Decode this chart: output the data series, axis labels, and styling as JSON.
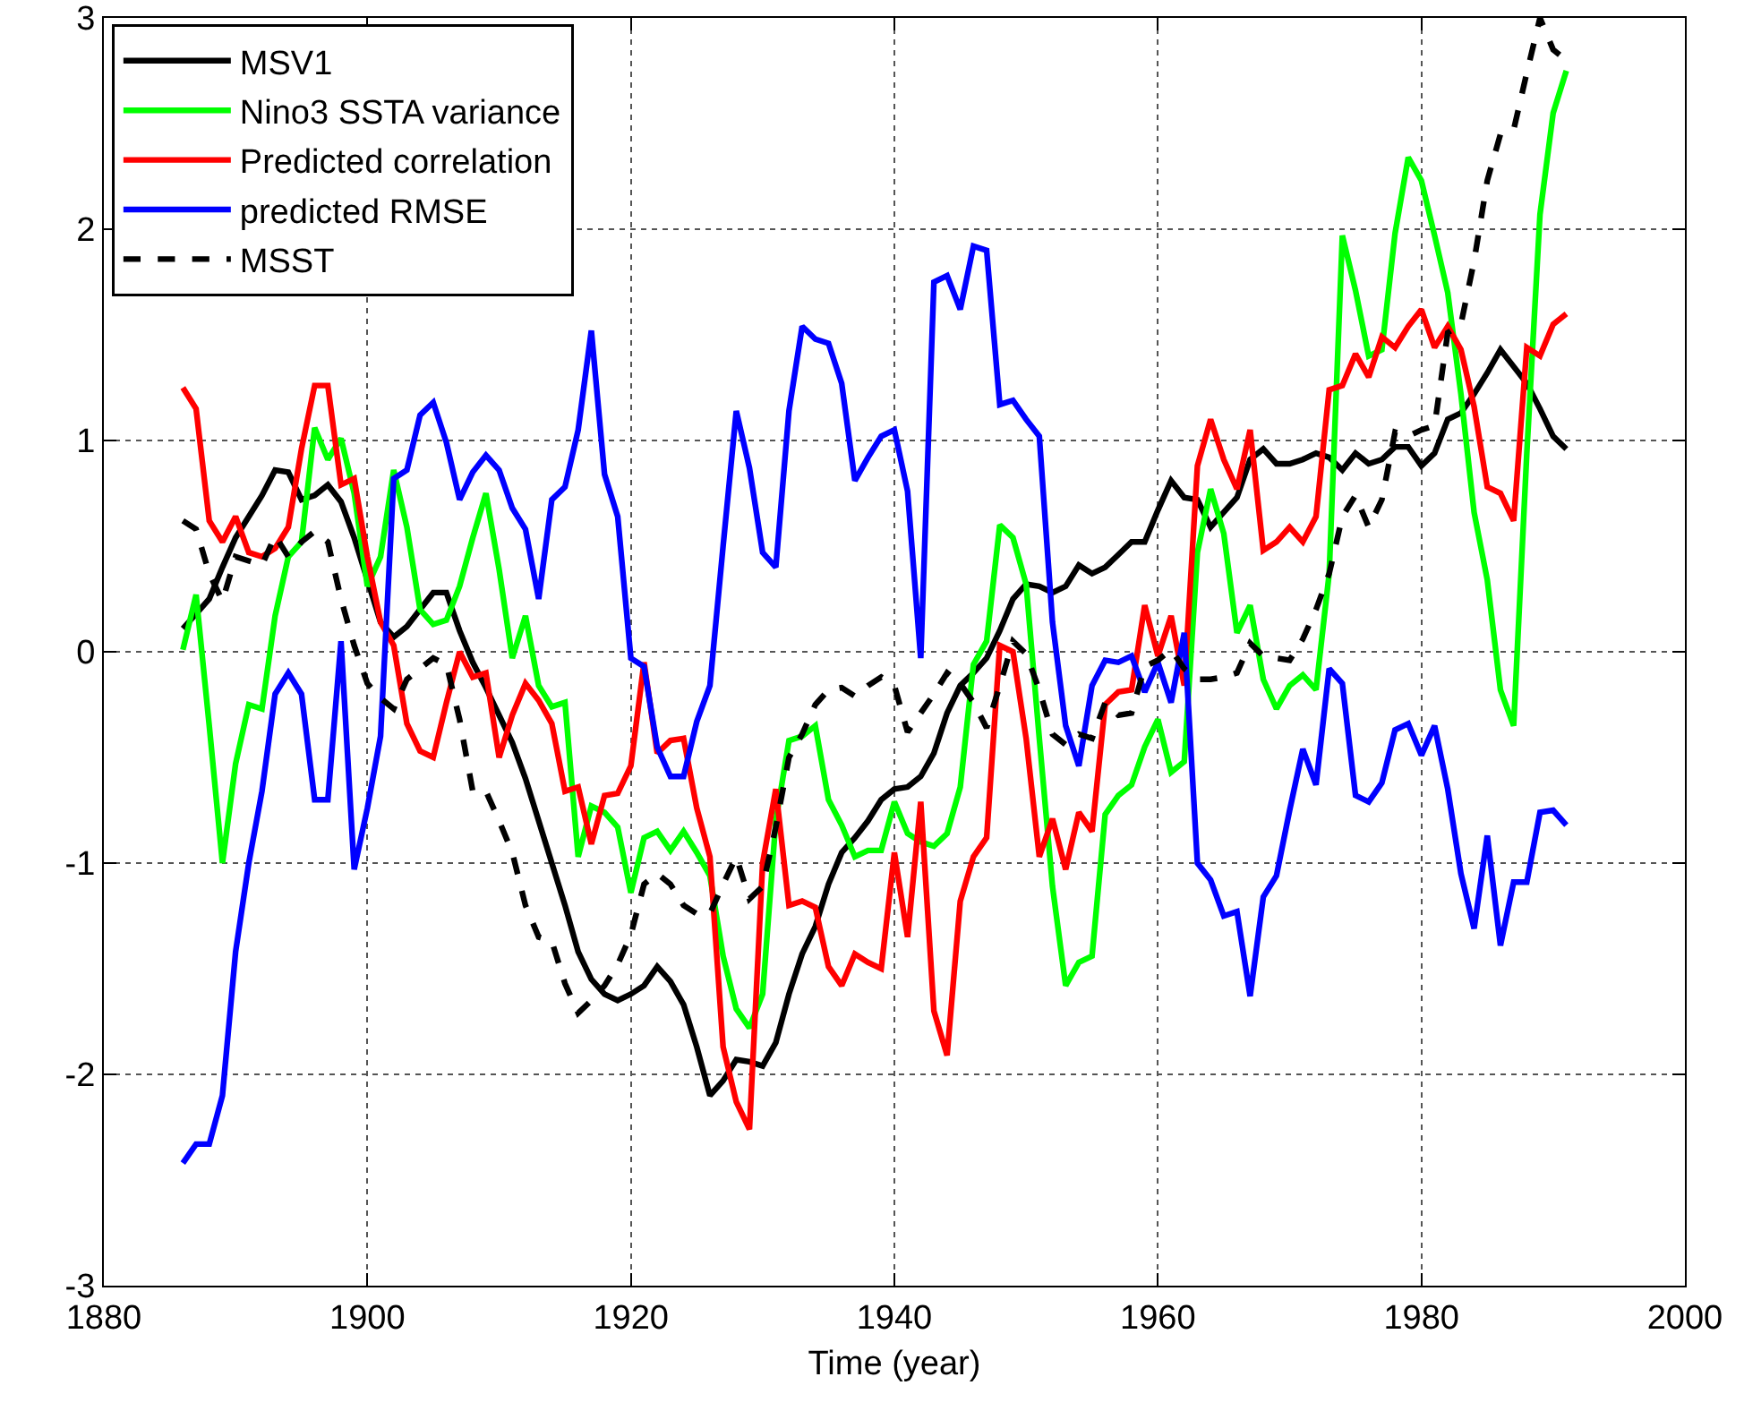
{
  "chart_data": {
    "type": "line",
    "xlabel": "Time (year)",
    "x": [
      1886,
      1887,
      1888,
      1889,
      1890,
      1891,
      1892,
      1893,
      1894,
      1895,
      1896,
      1897,
      1898,
      1899,
      1900,
      1901,
      1902,
      1903,
      1904,
      1905,
      1906,
      1907,
      1908,
      1909,
      1910,
      1911,
      1912,
      1913,
      1914,
      1915,
      1916,
      1917,
      1918,
      1919,
      1920,
      1921,
      1922,
      1923,
      1924,
      1925,
      1926,
      1927,
      1928,
      1929,
      1930,
      1931,
      1932,
      1933,
      1934,
      1935,
      1936,
      1937,
      1938,
      1939,
      1940,
      1941,
      1942,
      1943,
      1944,
      1945,
      1946,
      1947,
      1948,
      1949,
      1950,
      1951,
      1952,
      1953,
      1954,
      1955,
      1956,
      1957,
      1958,
      1959,
      1960,
      1961,
      1962,
      1963,
      1964,
      1965,
      1966,
      1967,
      1968,
      1969,
      1970,
      1971,
      1972,
      1973,
      1974,
      1975,
      1976,
      1977,
      1978,
      1979,
      1980,
      1981,
      1982,
      1983,
      1984,
      1985,
      1986,
      1987,
      1988,
      1989,
      1990,
      1991
    ],
    "xlim": [
      1880,
      2000
    ],
    "xticks": [
      1880,
      1900,
      1920,
      1940,
      1960,
      1980,
      2000
    ],
    "ylim": [
      -3,
      3
    ],
    "yticks": [
      -3,
      -2,
      -1,
      0,
      1,
      2,
      3
    ],
    "grid": true,
    "legend": "top left",
    "series": [
      {
        "name": "MSV1",
        "color": "#000000",
        "line_style": "solid",
        "values": [
          0.11,
          0.18,
          0.25,
          0.4,
          0.54,
          0.64,
          0.74,
          0.86,
          0.85,
          0.72,
          0.74,
          0.79,
          0.71,
          0.54,
          0.34,
          0.14,
          0.07,
          0.12,
          0.2,
          0.28,
          0.28,
          0.1,
          -0.05,
          -0.17,
          -0.3,
          -0.43,
          -0.6,
          -0.8,
          -1.0,
          -1.2,
          -1.42,
          -1.55,
          -1.62,
          -1.65,
          -1.62,
          -1.58,
          -1.49,
          -1.56,
          -1.67,
          -1.87,
          -2.1,
          -2.03,
          -1.93,
          -1.94,
          -1.96,
          -1.85,
          -1.62,
          -1.43,
          -1.3,
          -1.1,
          -0.95,
          -0.88,
          -0.8,
          -0.7,
          -0.65,
          -0.64,
          -0.59,
          -0.48,
          -0.29,
          -0.16,
          -0.1,
          -0.03,
          0.1,
          0.25,
          0.32,
          0.31,
          0.28,
          0.31,
          0.41,
          0.37,
          0.4,
          0.46,
          0.52,
          0.52,
          0.67,
          0.81,
          0.73,
          0.72,
          0.59,
          0.66,
          0.73,
          0.91,
          0.96,
          0.89,
          0.89,
          0.91,
          0.94,
          0.92,
          0.86,
          0.94,
          0.89,
          0.91,
          0.97,
          0.97,
          0.88,
          0.94,
          1.1,
          1.13,
          1.22,
          1.32,
          1.43,
          1.35,
          1.27,
          1.15,
          1.02,
          0.96
        ]
      },
      {
        "name": "Nino3 SSTA variance",
        "color": "#00ff00",
        "line_style": "solid",
        "values": [
          0.01,
          0.27,
          -0.35,
          -1.0,
          -0.53,
          -0.25,
          -0.27,
          0.17,
          0.45,
          0.52,
          1.06,
          0.91,
          1.01,
          0.75,
          0.31,
          0.45,
          0.86,
          0.59,
          0.2,
          0.13,
          0.15,
          0.31,
          0.54,
          0.75,
          0.39,
          -0.03,
          0.17,
          -0.16,
          -0.26,
          -0.24,
          -0.97,
          -0.73,
          -0.76,
          -0.83,
          -1.14,
          -0.88,
          -0.85,
          -0.94,
          -0.85,
          -0.95,
          -1.06,
          -1.44,
          -1.69,
          -1.78,
          -1.62,
          -0.8,
          -0.42,
          -0.4,
          -0.35,
          -0.7,
          -0.82,
          -0.97,
          -0.94,
          -0.94,
          -0.71,
          -0.86,
          -0.9,
          -0.92,
          -0.86,
          -0.64,
          -0.06,
          0.05,
          0.6,
          0.54,
          0.32,
          -0.41,
          -1.11,
          -1.58,
          -1.47,
          -1.44,
          -0.77,
          -0.68,
          -0.63,
          -0.45,
          -0.32,
          -0.57,
          -0.52,
          0.47,
          0.77,
          0.56,
          0.09,
          0.22,
          -0.13,
          -0.27,
          -0.16,
          -0.11,
          -0.18,
          0.37,
          1.97,
          1.71,
          1.4,
          1.43,
          1.98,
          2.34,
          2.23,
          1.97,
          1.7,
          1.22,
          0.66,
          0.34,
          -0.18,
          -0.35,
          0.94,
          2.07,
          2.55,
          2.75
        ]
      },
      {
        "name": "Predicted correlation",
        "color": "#ff0000",
        "line_style": "solid",
        "values": [
          1.25,
          1.15,
          0.62,
          0.52,
          0.64,
          0.47,
          0.45,
          0.49,
          0.59,
          0.96,
          1.26,
          1.26,
          0.79,
          0.82,
          0.45,
          0.14,
          0.03,
          -0.34,
          -0.47,
          -0.5,
          -0.24,
          0.0,
          -0.12,
          -0.1,
          -0.5,
          -0.3,
          -0.15,
          -0.23,
          -0.34,
          -0.66,
          -0.64,
          -0.91,
          -0.68,
          -0.67,
          -0.54,
          -0.05,
          -0.48,
          -0.42,
          -0.41,
          -0.74,
          -0.97,
          -1.87,
          -2.13,
          -2.26,
          -1.0,
          -0.65,
          -1.2,
          -1.18,
          -1.21,
          -1.49,
          -1.58,
          -1.43,
          -1.47,
          -1.5,
          -0.95,
          -1.35,
          -0.71,
          -1.7,
          -1.91,
          -1.18,
          -0.97,
          -0.88,
          0.03,
          0.0,
          -0.41,
          -0.97,
          -0.79,
          -1.03,
          -0.76,
          -0.85,
          -0.25,
          -0.19,
          -0.18,
          0.22,
          -0.02,
          0.17,
          -0.16,
          0.88,
          1.1,
          0.91,
          0.77,
          1.05,
          0.48,
          0.52,
          0.59,
          0.52,
          0.64,
          1.24,
          1.26,
          1.41,
          1.3,
          1.49,
          1.44,
          1.54,
          1.62,
          1.44,
          1.54,
          1.43,
          1.16,
          0.78,
          0.75,
          0.62,
          1.44,
          1.4,
          1.55,
          1.6
        ]
      },
      {
        "name": "predicted RMSE",
        "color": "#0000ff",
        "line_style": "solid",
        "values": [
          -2.42,
          -2.33,
          -2.33,
          -2.1,
          -1.42,
          -1.0,
          -0.66,
          -0.2,
          -0.1,
          -0.2,
          -0.7,
          -0.7,
          0.05,
          -1.03,
          -0.74,
          -0.4,
          0.82,
          0.86,
          1.12,
          1.18,
          0.99,
          0.72,
          0.85,
          0.93,
          0.86,
          0.68,
          0.58,
          0.25,
          0.72,
          0.78,
          1.05,
          1.52,
          0.84,
          0.64,
          -0.03,
          -0.07,
          -0.45,
          -0.59,
          -0.59,
          -0.33,
          -0.16,
          0.5,
          1.14,
          0.87,
          0.47,
          0.4,
          1.14,
          1.54,
          1.48,
          1.46,
          1.27,
          0.81,
          0.92,
          1.02,
          1.05,
          0.76,
          -0.03,
          1.75,
          1.78,
          1.62,
          1.92,
          1.9,
          1.17,
          1.19,
          1.1,
          1.02,
          0.14,
          -0.35,
          -0.54,
          -0.16,
          -0.04,
          -0.05,
          -0.02,
          -0.19,
          -0.05,
          -0.24,
          0.09,
          -1.0,
          -1.08,
          -1.25,
          -1.23,
          -1.63,
          -1.16,
          -1.06,
          -0.75,
          -0.46,
          -0.63,
          -0.08,
          -0.15,
          -0.68,
          -0.71,
          -0.62,
          -0.37,
          -0.34,
          -0.49,
          -0.35,
          -0.65,
          -1.05,
          -1.31,
          -0.87,
          -1.39,
          -1.09,
          -1.09,
          -0.76,
          -0.75,
          -0.82
        ]
      },
      {
        "name": "MSST",
        "color": "#000000",
        "line_style": "dashed",
        "values": [
          0.62,
          0.58,
          0.37,
          0.24,
          0.45,
          0.43,
          0.41,
          0.55,
          0.45,
          0.52,
          0.57,
          0.52,
          0.25,
          0.03,
          -0.15,
          -0.22,
          -0.27,
          -0.13,
          -0.08,
          -0.03,
          -0.06,
          -0.32,
          -0.66,
          -0.66,
          -0.8,
          -0.95,
          -1.2,
          -1.35,
          -1.37,
          -1.57,
          -1.71,
          -1.65,
          -1.58,
          -1.48,
          -1.34,
          -1.1,
          -1.05,
          -1.1,
          -1.2,
          -1.24,
          -1.24,
          -1.1,
          -0.97,
          -1.17,
          -1.11,
          -0.83,
          -0.5,
          -0.39,
          -0.25,
          -0.18,
          -0.17,
          -0.21,
          -0.16,
          -0.12,
          -0.16,
          -0.38,
          -0.29,
          -0.2,
          -0.1,
          -0.15,
          -0.24,
          -0.36,
          -0.16,
          0.05,
          -0.01,
          -0.18,
          -0.39,
          -0.44,
          -0.39,
          -0.41,
          -0.24,
          -0.3,
          -0.29,
          -0.07,
          -0.04,
          0.01,
          -0.08,
          -0.13,
          -0.13,
          -0.12,
          -0.1,
          0.04,
          -0.02,
          -0.03,
          -0.04,
          0.06,
          0.2,
          0.37,
          0.64,
          0.74,
          0.59,
          0.72,
          1.04,
          1.02,
          1.05,
          1.07,
          1.51,
          1.55,
          1.85,
          2.23,
          2.45,
          2.47,
          2.74,
          3.0,
          2.85,
          2.8
        ]
      }
    ]
  }
}
